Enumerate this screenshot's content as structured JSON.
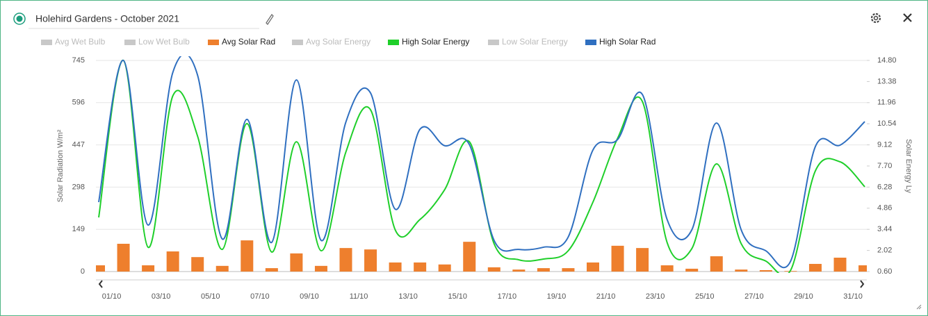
{
  "chart_data": {
    "type": "bar-line",
    "title": "Holehird Gardens - October 2021",
    "y_label": "Solar Radiation W/m²",
    "y2_label": "Solar Energy Ly",
    "categories": [
      null,
      "01/10",
      null,
      "03/10",
      null,
      "05/10",
      null,
      "07/10",
      null,
      "09/10",
      null,
      "11/10",
      null,
      "13/10",
      null,
      "15/10",
      null,
      "17/10",
      null,
      "19/10",
      null,
      "21/10",
      null,
      "23/10",
      null,
      "25/10",
      null,
      "27/10",
      null,
      "29/10",
      null,
      "31/10"
    ],
    "ylim": [
      0,
      745
    ],
    "yticks": [
      0,
      149,
      298,
      447,
      596,
      745
    ],
    "y2lim": [
      0.6,
      14.8
    ],
    "y2ticks": [
      {
        "value": 0.6,
        "label": "0.60"
      },
      2.02,
      3.44,
      4.86,
      6.28,
      {
        "value": 7.7,
        "label": "7.70"
      },
      9.12,
      10.54,
      11.96,
      13.38,
      {
        "value": 14.8,
        "label": "14.80"
      }
    ],
    "grid": true,
    "series": [
      {
        "name": "Avg Wet Bulb",
        "color": "#c8c8c8",
        "visible": false
      },
      {
        "name": "Low Wet Bulb",
        "color": "#c8c8c8",
        "visible": false
      },
      {
        "name": "Avg Solar Rad",
        "color": "#ee7f2d",
        "visible": true,
        "kind": "bar",
        "values": [
          22,
          98,
          22,
          71,
          51,
          20,
          110,
          12,
          64,
          20,
          83,
          78,
          32,
          32,
          25,
          105,
          15,
          7,
          12,
          12,
          32,
          91,
          83,
          22,
          10,
          54,
          7,
          5,
          2,
          27,
          49,
          22
        ]
      },
      {
        "name": "Avg Solar Energy",
        "color": "#c8c8c8",
        "visible": false
      },
      {
        "name": "High Solar Energy",
        "color": "#1fcf2a",
        "visible": true,
        "kind": "line",
        "axis": "y2",
        "values": [
          4.24,
          14.8,
          2.23,
          12.42,
          9.71,
          2.09,
          10.55,
          1.91,
          9.33,
          2.0,
          8.63,
          11.48,
          3.4,
          4.1,
          6.11,
          9.33,
          2.47,
          1.39,
          1.44,
          2.0,
          5.27,
          9.57,
          12.04,
          2.56,
          2.14,
          7.84,
          2.47,
          1.3,
          0.69,
          7.37,
          7.98,
          6.3
        ]
      },
      {
        "name": "Low Solar Energy",
        "color": "#c8c8c8",
        "visible": false
      },
      {
        "name": "High Solar Rad",
        "color": "#2f6fc0",
        "visible": true,
        "kind": "line",
        "values": [
          245,
          745,
          164,
          703,
          693,
          115,
          537,
          103,
          676,
          110,
          527,
          630,
          220,
          502,
          444,
          448,
          110,
          78,
          86,
          122,
          429,
          466,
          625,
          184,
          147,
          524,
          147,
          73,
          37,
          441,
          446,
          529
        ]
      }
    ]
  }
}
